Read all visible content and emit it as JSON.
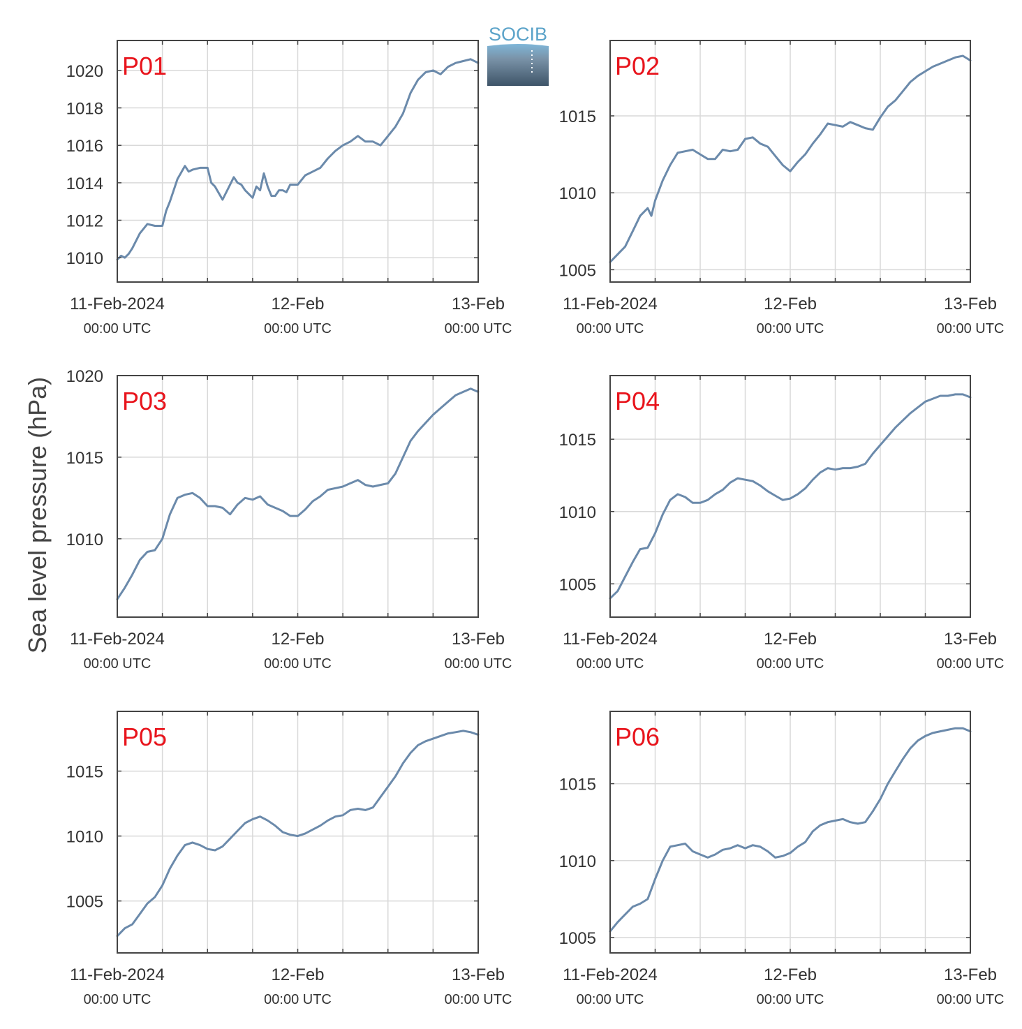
{
  "figure": {
    "ylabel": "Sea level pressure (hPa)",
    "logo_text": "SOCIB",
    "colors": {
      "line": "#6b8aab",
      "panel_label": "#e8141c",
      "grid": "#d9d9d9",
      "axis": "#444444",
      "text": "#333333",
      "logo_text": "#5ba3c9",
      "logo_top": "#7fb6d8",
      "logo_bottom": "#3e5468"
    }
  },
  "chart_data": [
    {
      "type": "line",
      "panel": "P01",
      "xlabel": "",
      "ylabel": "Sea level pressure (hPa)",
      "xlim": [
        0,
        48
      ],
      "ylim": [
        1008.7,
        1021.6
      ],
      "grid": true,
      "xticks": [
        {
          "x": 0,
          "date": "11-Feb-2024",
          "time": "00:00 UTC"
        },
        {
          "x": 24,
          "date": "12-Feb",
          "time": "00:00 UTC"
        },
        {
          "x": 48,
          "date": "13-Feb",
          "time": "00:00 UTC"
        }
      ],
      "minor_xticks": [
        6,
        12,
        18,
        30,
        36,
        42
      ],
      "yticks": [
        1010,
        1012,
        1014,
        1016,
        1018,
        1020
      ],
      "series": [
        {
          "x": [
            0,
            0.5,
            1,
            1.5,
            2,
            3,
            4,
            5,
            6,
            6.5,
            7,
            8,
            9,
            9.5,
            10,
            11,
            12,
            12.5,
            13,
            14,
            15,
            15.5,
            16,
            16.5,
            17,
            18,
            18.5,
            19,
            19.5,
            20,
            20.5,
            21,
            21.5,
            22,
            22.5,
            23,
            24,
            25,
            26,
            27,
            28,
            29,
            30,
            31,
            32,
            33,
            34,
            35,
            36,
            37,
            38,
            39,
            40,
            41,
            42,
            43,
            44,
            45,
            46,
            47,
            48
          ],
          "y": [
            1009.9,
            1010.1,
            1010.0,
            1010.2,
            1010.5,
            1011.3,
            1011.8,
            1011.7,
            1011.7,
            1012.5,
            1013.0,
            1014.2,
            1014.9,
            1014.6,
            1014.7,
            1014.8,
            1014.8,
            1014.0,
            1013.8,
            1013.1,
            1013.9,
            1014.3,
            1014.0,
            1013.9,
            1013.6,
            1013.2,
            1013.8,
            1013.6,
            1014.5,
            1013.8,
            1013.3,
            1013.3,
            1013.6,
            1013.6,
            1013.5,
            1013.9,
            1013.9,
            1014.4,
            1014.6,
            1014.8,
            1015.3,
            1015.7,
            1016.0,
            1016.2,
            1016.5,
            1016.2,
            1016.2,
            1016.0,
            1016.5,
            1017.0,
            1017.7,
            1018.8,
            1019.5,
            1019.9,
            1020.0,
            1019.8,
            1020.2,
            1020.4,
            1020.5,
            1020.6,
            1020.4
          ]
        }
      ]
    },
    {
      "type": "line",
      "panel": "P02",
      "xlabel": "",
      "ylabel": "Sea level pressure (hPa)",
      "xlim": [
        0,
        48
      ],
      "ylim": [
        1004.2,
        1019.9
      ],
      "grid": true,
      "xticks": [
        {
          "x": 0,
          "date": "11-Feb-2024",
          "time": "00:00 UTC"
        },
        {
          "x": 24,
          "date": "12-Feb",
          "time": "00:00 UTC"
        },
        {
          "x": 48,
          "date": "13-Feb",
          "time": "00:00 UTC"
        }
      ],
      "minor_xticks": [
        6,
        12,
        18,
        30,
        36,
        42
      ],
      "yticks": [
        1005,
        1010,
        1015
      ],
      "series": [
        {
          "x": [
            0,
            1,
            2,
            3,
            4,
            5,
            5.5,
            6,
            7,
            8,
            9,
            10,
            11,
            12,
            13,
            14,
            15,
            16,
            17,
            18,
            19,
            20,
            21,
            22,
            23,
            24,
            25,
            26,
            27,
            28,
            29,
            30,
            31,
            32,
            33,
            34,
            35,
            36,
            37,
            38,
            39,
            40,
            41,
            42,
            43,
            44,
            45,
            46,
            47,
            48
          ],
          "y": [
            1005.5,
            1006.0,
            1006.5,
            1007.5,
            1008.5,
            1009.0,
            1008.5,
            1009.5,
            1010.8,
            1011.8,
            1012.6,
            1012.7,
            1012.8,
            1012.5,
            1012.2,
            1012.2,
            1012.8,
            1012.7,
            1012.8,
            1013.5,
            1013.6,
            1013.2,
            1013.0,
            1012.4,
            1011.8,
            1011.4,
            1012.0,
            1012.5,
            1013.2,
            1013.8,
            1014.5,
            1014.4,
            1014.3,
            1014.6,
            1014.4,
            1014.2,
            1014.1,
            1014.9,
            1015.6,
            1016.0,
            1016.6,
            1017.2,
            1017.6,
            1017.9,
            1018.2,
            1018.4,
            1018.6,
            1018.8,
            1018.9,
            1018.6
          ]
        }
      ]
    },
    {
      "type": "line",
      "panel": "P03",
      "xlabel": "",
      "ylabel": "Sea level pressure (hPa)",
      "xlim": [
        0,
        48
      ],
      "ylim": [
        1005.2,
        1020.0
      ],
      "grid": true,
      "xticks": [
        {
          "x": 0,
          "date": "11-Feb-2024",
          "time": "00:00 UTC"
        },
        {
          "x": 24,
          "date": "12-Feb",
          "time": "00:00 UTC"
        },
        {
          "x": 48,
          "date": "13-Feb",
          "time": "00:00 UTC"
        }
      ],
      "minor_xticks": [
        6,
        12,
        18,
        30,
        36,
        42
      ],
      "yticks": [
        1010,
        1015,
        1020
      ],
      "series": [
        {
          "x": [
            0,
            1,
            2,
            3,
            4,
            5,
            6,
            7,
            8,
            9,
            10,
            11,
            12,
            13,
            14,
            15,
            16,
            17,
            18,
            19,
            20,
            21,
            22,
            23,
            24,
            25,
            26,
            27,
            28,
            29,
            30,
            31,
            32,
            33,
            34,
            35,
            36,
            37,
            38,
            39,
            40,
            41,
            42,
            43,
            44,
            45,
            46,
            47,
            48
          ],
          "y": [
            1006.3,
            1007.0,
            1007.8,
            1008.7,
            1009.2,
            1009.3,
            1010.0,
            1011.5,
            1012.5,
            1012.7,
            1012.8,
            1012.5,
            1012.0,
            1012.0,
            1011.9,
            1011.5,
            1012.1,
            1012.5,
            1012.4,
            1012.6,
            1012.1,
            1011.9,
            1011.7,
            1011.4,
            1011.4,
            1011.8,
            1012.3,
            1012.6,
            1013.0,
            1013.1,
            1013.2,
            1013.4,
            1013.6,
            1013.3,
            1013.2,
            1013.3,
            1013.4,
            1014.0,
            1015.0,
            1016.0,
            1016.6,
            1017.1,
            1017.6,
            1018.0,
            1018.4,
            1018.8,
            1019.0,
            1019.2,
            1019.0
          ]
        }
      ]
    },
    {
      "type": "line",
      "panel": "P04",
      "xlabel": "",
      "ylabel": "Sea level pressure (hPa)",
      "xlim": [
        0,
        48
      ],
      "ylim": [
        1002.7,
        1019.4
      ],
      "grid": true,
      "xticks": [
        {
          "x": 0,
          "date": "11-Feb-2024",
          "time": "00:00 UTC"
        },
        {
          "x": 24,
          "date": "12-Feb",
          "time": "00:00 UTC"
        },
        {
          "x": 48,
          "date": "13-Feb",
          "time": "00:00 UTC"
        }
      ],
      "minor_xticks": [
        6,
        12,
        18,
        30,
        36,
        42
      ],
      "yticks": [
        1005,
        1010,
        1015
      ],
      "series": [
        {
          "x": [
            0,
            1,
            2,
            3,
            4,
            5,
            6,
            7,
            8,
            9,
            10,
            11,
            12,
            13,
            14,
            15,
            16,
            17,
            18,
            19,
            20,
            21,
            22,
            23,
            24,
            25,
            26,
            27,
            28,
            29,
            30,
            31,
            32,
            33,
            34,
            35,
            36,
            37,
            38,
            39,
            40,
            41,
            42,
            43,
            44,
            45,
            46,
            47,
            48
          ],
          "y": [
            1004.0,
            1004.5,
            1005.5,
            1006.5,
            1007.4,
            1007.5,
            1008.5,
            1009.8,
            1010.8,
            1011.2,
            1011.0,
            1010.6,
            1010.6,
            1010.8,
            1011.2,
            1011.5,
            1012.0,
            1012.3,
            1012.2,
            1012.1,
            1011.8,
            1011.4,
            1011.1,
            1010.8,
            1010.9,
            1011.2,
            1011.6,
            1012.2,
            1012.7,
            1013.0,
            1012.9,
            1013.0,
            1013.0,
            1013.1,
            1013.3,
            1014.0,
            1014.6,
            1015.2,
            1015.8,
            1016.3,
            1016.8,
            1017.2,
            1017.6,
            1017.8,
            1018.0,
            1018.0,
            1018.1,
            1018.1,
            1017.9
          ]
        }
      ]
    },
    {
      "type": "line",
      "panel": "P05",
      "xlabel": "",
      "ylabel": "Sea level pressure (hPa)",
      "xlim": [
        0,
        48
      ],
      "ylim": [
        1001.0,
        1019.6
      ],
      "grid": true,
      "xticks": [
        {
          "x": 0,
          "date": "11-Feb-2024",
          "time": "00:00 UTC"
        },
        {
          "x": 24,
          "date": "12-Feb",
          "time": "00:00 UTC"
        },
        {
          "x": 48,
          "date": "13-Feb",
          "time": "00:00 UTC"
        }
      ],
      "minor_xticks": [
        6,
        12,
        18,
        30,
        36,
        42
      ],
      "yticks": [
        1005,
        1010,
        1015
      ],
      "series": [
        {
          "x": [
            0,
            1,
            2,
            3,
            4,
            5,
            6,
            7,
            8,
            9,
            10,
            11,
            12,
            13,
            14,
            15,
            16,
            17,
            18,
            19,
            20,
            21,
            22,
            23,
            24,
            25,
            26,
            27,
            28,
            29,
            30,
            31,
            32,
            33,
            34,
            35,
            36,
            37,
            38,
            39,
            40,
            41,
            42,
            43,
            44,
            45,
            46,
            47,
            48
          ],
          "y": [
            1002.3,
            1002.9,
            1003.2,
            1004.0,
            1004.8,
            1005.3,
            1006.2,
            1007.5,
            1008.5,
            1009.3,
            1009.5,
            1009.3,
            1009.0,
            1008.9,
            1009.2,
            1009.8,
            1010.4,
            1011.0,
            1011.3,
            1011.5,
            1011.2,
            1010.8,
            1010.3,
            1010.1,
            1010.0,
            1010.2,
            1010.5,
            1010.8,
            1011.2,
            1011.5,
            1011.6,
            1012.0,
            1012.1,
            1012.0,
            1012.2,
            1013.0,
            1013.8,
            1014.6,
            1015.6,
            1016.4,
            1017.0,
            1017.3,
            1017.5,
            1017.7,
            1017.9,
            1018.0,
            1018.1,
            1018.0,
            1017.8
          ]
        }
      ]
    },
    {
      "type": "line",
      "panel": "P06",
      "xlabel": "",
      "ylabel": "Sea level pressure (hPa)",
      "xlim": [
        0,
        48
      ],
      "ylim": [
        1004.0,
        1019.7
      ],
      "grid": true,
      "xticks": [
        {
          "x": 0,
          "date": "11-Feb-2024",
          "time": "00:00 UTC"
        },
        {
          "x": 24,
          "date": "12-Feb",
          "time": "00:00 UTC"
        },
        {
          "x": 48,
          "date": "13-Feb",
          "time": "00:00 UTC"
        }
      ],
      "minor_xticks": [
        6,
        12,
        18,
        30,
        36,
        42
      ],
      "yticks": [
        1005,
        1010,
        1015
      ],
      "series": [
        {
          "x": [
            0,
            1,
            2,
            3,
            4,
            5,
            6,
            7,
            8,
            9,
            10,
            11,
            12,
            13,
            14,
            15,
            16,
            17,
            18,
            19,
            20,
            21,
            22,
            23,
            24,
            25,
            26,
            27,
            28,
            29,
            30,
            31,
            32,
            33,
            34,
            35,
            36,
            37,
            38,
            39,
            40,
            41,
            42,
            43,
            44,
            45,
            46,
            47,
            48
          ],
          "y": [
            1005.4,
            1006.0,
            1006.5,
            1007.0,
            1007.2,
            1007.5,
            1008.8,
            1010.0,
            1010.9,
            1011.0,
            1011.1,
            1010.6,
            1010.4,
            1010.2,
            1010.4,
            1010.7,
            1010.8,
            1011.0,
            1010.8,
            1011.0,
            1010.9,
            1010.6,
            1010.2,
            1010.3,
            1010.5,
            1010.9,
            1011.2,
            1011.9,
            1012.3,
            1012.5,
            1012.6,
            1012.7,
            1012.5,
            1012.4,
            1012.5,
            1013.2,
            1014.0,
            1015.0,
            1015.8,
            1016.6,
            1017.3,
            1017.8,
            1018.1,
            1018.3,
            1018.4,
            1018.5,
            1018.6,
            1018.6,
            1018.4
          ]
        }
      ]
    }
  ]
}
